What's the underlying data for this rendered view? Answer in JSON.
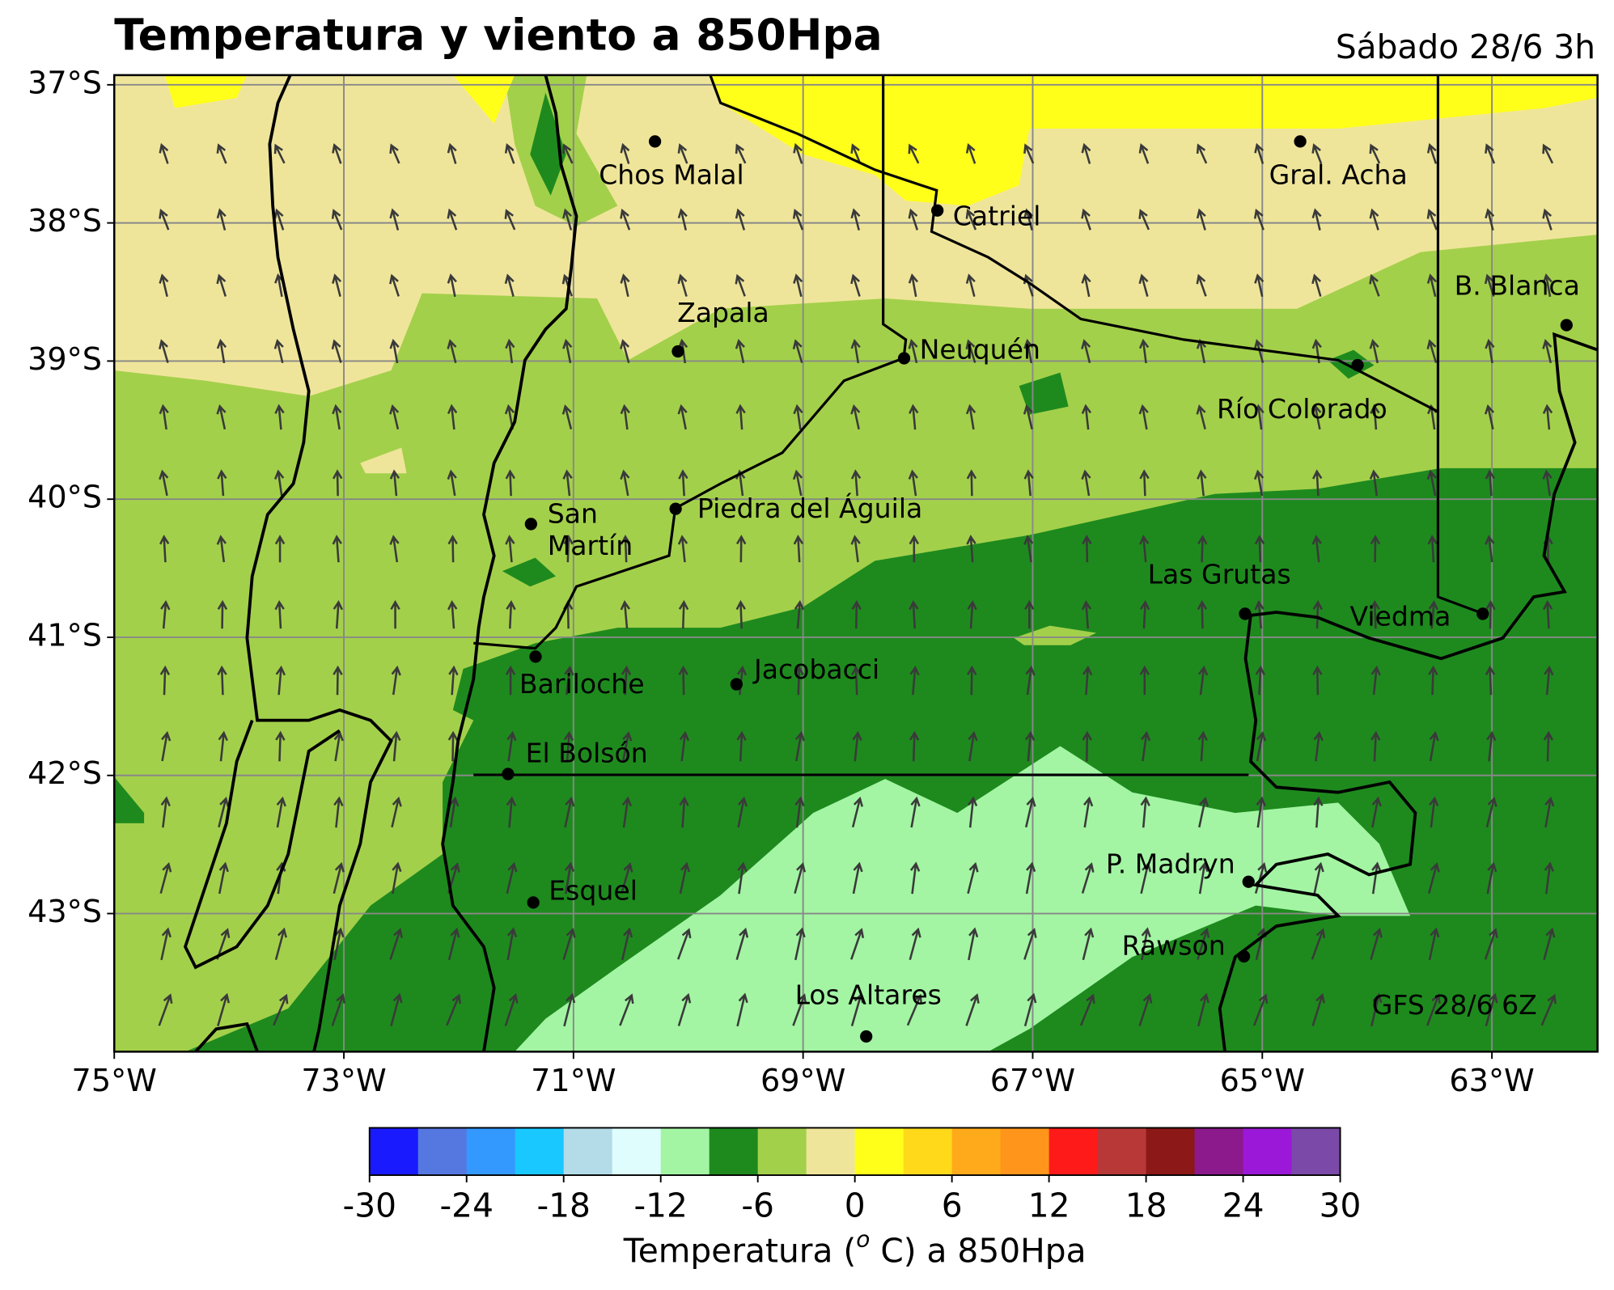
{
  "map": {
    "title": "Temperatura y viento a 850Hpa",
    "subtitle": "Sábado 28/6 3h",
    "source": "GFS 28/6 6Z",
    "xlim": [
      -75,
      -62.08
    ],
    "ylim": [
      -44,
      -36.93
    ],
    "xticks": [
      {
        "value": -75,
        "label": "75°W"
      },
      {
        "value": -73,
        "label": "73°W"
      },
      {
        "value": -71,
        "label": "71°W"
      },
      {
        "value": -69,
        "label": "69°W"
      },
      {
        "value": -67,
        "label": "67°W"
      },
      {
        "value": -65,
        "label": "65°W"
      },
      {
        "value": -63,
        "label": "63°W"
      }
    ],
    "yticks": [
      {
        "value": -37,
        "label": "37°S"
      },
      {
        "value": -38,
        "label": "38°S"
      },
      {
        "value": -39,
        "label": "39°S"
      },
      {
        "value": -40,
        "label": "40°S"
      },
      {
        "value": -41,
        "label": "41°S"
      },
      {
        "value": -42,
        "label": "42°S"
      },
      {
        "value": -43,
        "label": "43°S"
      }
    ],
    "grid": true,
    "cities": [
      {
        "name": "Chos Malal",
        "lon": -70.29,
        "lat": -37.41
      },
      {
        "name": "Catriel",
        "lon": -67.83,
        "lat": -37.91
      },
      {
        "name": "Gral. Acha",
        "lon": -64.67,
        "lat": -37.41
      },
      {
        "name": "B. Blanca",
        "lon": -62.35,
        "lat": -38.74
      },
      {
        "name": "Zapala",
        "lon": -70.09,
        "lat": -38.93
      },
      {
        "name": "Neuquén",
        "lon": -68.12,
        "lat": -38.98
      },
      {
        "name": "Río Colorado",
        "lon": -64.17,
        "lat": -39.03
      },
      {
        "name": "San Martín",
        "lon": -71.37,
        "lat": -40.18
      },
      {
        "name": "Piedra del Águila",
        "lon": -70.11,
        "lat": -40.07
      },
      {
        "name": "Las Grutas",
        "lon": -65.15,
        "lat": -40.83
      },
      {
        "name": "Viedma",
        "lon": -63.08,
        "lat": -40.83
      },
      {
        "name": "Bariloche",
        "lon": -71.33,
        "lat": -41.14
      },
      {
        "name": "Jacobacci",
        "lon": -69.58,
        "lat": -41.34
      },
      {
        "name": "El Bolsón",
        "lon": -71.57,
        "lat": -41.99
      },
      {
        "name": "P. Madryn",
        "lon": -65.12,
        "lat": -42.77
      },
      {
        "name": "Esquel",
        "lon": -71.35,
        "lat": -42.92
      },
      {
        "name": "Rawson",
        "lon": -65.16,
        "lat": -43.31
      },
      {
        "name": "Los Altares",
        "lon": -68.45,
        "lat": -43.89
      }
    ],
    "colorbar": {
      "bounds": [
        -30,
        -27,
        -24,
        -21,
        -18,
        -15,
        -12,
        -9,
        -6,
        -3,
        0,
        3,
        6,
        9,
        12,
        15,
        18,
        21,
        24,
        27,
        30
      ],
      "colors": [
        "#1a1aff",
        "#5577e0",
        "#3399ff",
        "#19c8ff",
        "#b3dbe8",
        "#e0fdfd",
        "#a3f5a3",
        "#1e8a1e",
        "#a3d04a",
        "#efe59a",
        "#ffff1a",
        "#ffd91a",
        "#ffaa1a",
        "#ff951a",
        "#ff1a1a",
        "#b83838",
        "#8c1818",
        "#8c1a8c",
        "#9b18d8",
        "#7b4aa8"
      ],
      "ticks": [
        -30,
        -24,
        -18,
        -12,
        -6,
        0,
        6,
        12,
        18,
        24,
        30
      ],
      "label": [
        "Temperatura (",
        "o",
        " C) a 850Hpa"
      ]
    }
  }
}
